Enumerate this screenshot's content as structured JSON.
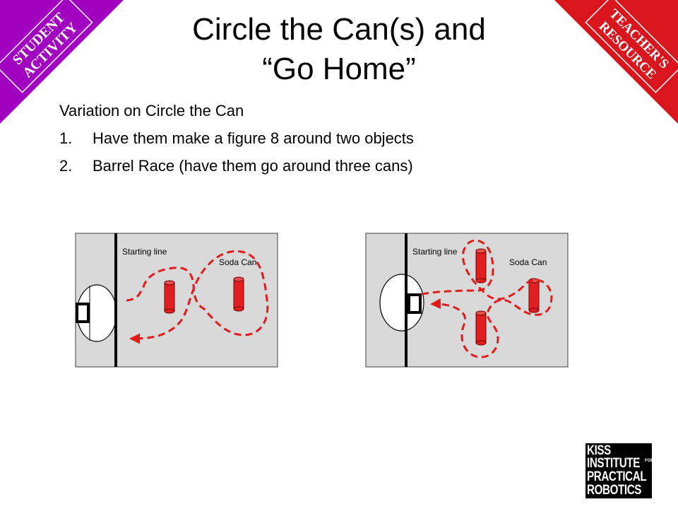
{
  "badges": {
    "student": {
      "line1": "STUDENT",
      "line2": "ACTIVITY",
      "color": "#a100c0"
    },
    "teacher": {
      "line1": "TEACHER'S",
      "line2": "RESOURCE",
      "color": "#d9161e"
    }
  },
  "title": {
    "line1": "Circle the Can(s) and",
    "line2": "“Go Home”"
  },
  "content": {
    "intro": "Variation on Circle the Can",
    "items": [
      {
        "num": "1.",
        "text": "Have them make a figure 8 around two objects"
      },
      {
        "num": "2.",
        "text": "Barrel Race (have them go around three cans)"
      }
    ]
  },
  "diagram_left": {
    "start_label": "Starting line",
    "can_label": "Soda Can"
  },
  "diagram_right": {
    "start_label": "Starting line",
    "can_label": "Soda Can"
  },
  "colors": {
    "field": "#d9d9d9",
    "can": "#e02020",
    "path": "#e31b1b"
  },
  "logo": {
    "line1": "KISS",
    "line2": "INSTITUTE",
    "for": "FOR",
    "line3": "PRACTICAL",
    "line4": "ROBOTICS"
  }
}
